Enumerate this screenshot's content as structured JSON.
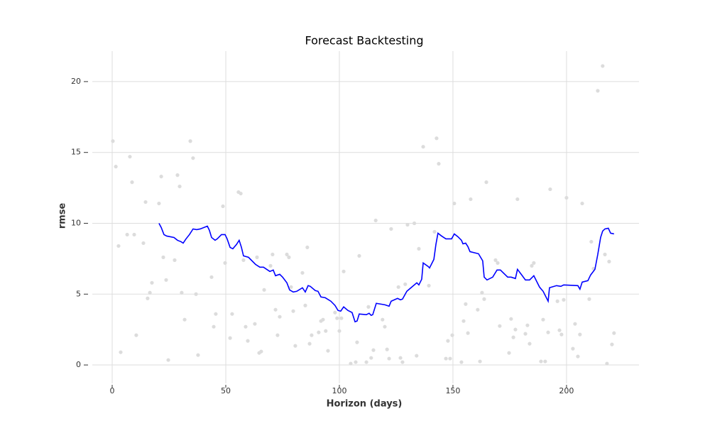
{
  "chart_data": {
    "type": "line",
    "title": "Forecast Backtesting",
    "x_label": "Horizon (days)",
    "y_label": "rmse",
    "xlim": [
      -8.75,
      231.9
    ],
    "ylim": [
      -1.3,
      22.15
    ],
    "xticks": [
      0,
      50,
      100,
      150,
      200
    ],
    "yticks": [
      0,
      5,
      10,
      15,
      20
    ],
    "grid": true,
    "series": [
      {
        "type": "scatter",
        "color": "#dcdcdc",
        "x": [
          0.3,
          1.6,
          2.8,
          3.75,
          6.6,
          7.8,
          8.75,
          9.7,
          10.6,
          13.75,
          14.7,
          15.6,
          16.6,
          17.5,
          20.6,
          21.6,
          22.5,
          23.75,
          24.7,
          27.5,
          28.75,
          29.7,
          30.6,
          31.9,
          34.4,
          35.6,
          36.9,
          37.8,
          43.75,
          44.7,
          45.6,
          48.75,
          49.7,
          51.9,
          52.8,
          55.6,
          56.6,
          57.8,
          58.75,
          59.7,
          62.8,
          63.75,
          64.7,
          65.6,
          66.9,
          69.7,
          70.6,
          71.9,
          72.8,
          73.75,
          76.9,
          77.8,
          78.75,
          79.7,
          80.6,
          83.75,
          85,
          85.9,
          86.9,
          87.8,
          90.9,
          91.9,
          92.8,
          94,
          95,
          98.1,
          99,
          100,
          100.9,
          101.9,
          105,
          107.2,
          107.8,
          108.75,
          111.9,
          112.8,
          114,
          115,
          116,
          119,
          120,
          121,
          121.9,
          122.8,
          126,
          126.9,
          127.8,
          129,
          130,
          133,
          134,
          135,
          136.9,
          139.4,
          141.9,
          142.8,
          143.75,
          146.9,
          147.8,
          148.75,
          149.7,
          150.6,
          153.75,
          154.7,
          155.6,
          156.6,
          157.8,
          160.9,
          161.9,
          162.8,
          163.75,
          164.7,
          168.75,
          169.7,
          170.6,
          174.7,
          175.6,
          176.6,
          177.5,
          178.4,
          181.9,
          182.8,
          183.75,
          184.7,
          185.6,
          188.75,
          189.7,
          190.6,
          191.9,
          192.8,
          196,
          196.9,
          197.8,
          198.75,
          200,
          202.8,
          203.75,
          205,
          205.9,
          206.9,
          210,
          210.9,
          211.9,
          213.75,
          215.9,
          216.9,
          217.8,
          218.75,
          220,
          220.9
        ],
        "values": [
          15.8,
          14.0,
          8.4,
          0.9,
          9.2,
          14.7,
          12.9,
          9.2,
          2.1,
          8.6,
          11.5,
          4.7,
          5.1,
          5.8,
          11.4,
          13.3,
          7.6,
          6.0,
          0.35,
          7.4,
          13.4,
          12.6,
          5.1,
          3.2,
          15.8,
          14.6,
          5.0,
          0.7,
          6.2,
          2.7,
          3.6,
          11.2,
          7.2,
          1.9,
          3.6,
          12.2,
          12.1,
          7.4,
          2.7,
          1.7,
          2.9,
          7.6,
          0.85,
          0.95,
          5.3,
          7.0,
          7.8,
          3.9,
          2.1,
          3.4,
          7.8,
          7.6,
          5.5,
          3.8,
          1.35,
          6.5,
          4.2,
          8.3,
          1.5,
          2.1,
          2.3,
          3.1,
          3.2,
          2.4,
          1.0,
          3.7,
          3.3,
          2.4,
          3.3,
          6.6,
          0.1,
          0.2,
          1.6,
          7.7,
          0.2,
          4.1,
          0.5,
          1.05,
          10.2,
          3.2,
          2.7,
          1.1,
          0.45,
          9.6,
          5.5,
          0.5,
          0.2,
          5.7,
          9.9,
          10.0,
          0.65,
          8.2,
          15.4,
          5.6,
          9.4,
          16.0,
          14.2,
          0.45,
          1.7,
          0.45,
          2.1,
          11.4,
          0.2,
          3.1,
          4.3,
          2.25,
          11.7,
          3.9,
          0.25,
          5.1,
          4.65,
          12.9,
          7.4,
          7.2,
          2.75,
          0.85,
          3.25,
          1.95,
          2.5,
          11.7,
          2.2,
          2.8,
          1.5,
          7.0,
          7.2,
          0.25,
          3.2,
          0.25,
          2.3,
          12.4,
          4.5,
          2.45,
          2.15,
          4.6,
          11.8,
          1.15,
          2.9,
          0.6,
          2.15,
          11.4,
          4.65,
          8.7,
          6.8,
          19.35,
          21.1,
          7.8,
          0.1,
          7.3,
          1.45,
          2.25
        ]
      },
      {
        "type": "line",
        "color": "#0000ff",
        "x": [
          20.6,
          21.6,
          22.8,
          24,
          27.2,
          28.75,
          30.3,
          31.25,
          32.5,
          34,
          35.6,
          37.2,
          38.75,
          41.9,
          42.8,
          43.75,
          45.3,
          46.25,
          48.1,
          49.7,
          50.6,
          51.9,
          53.1,
          54.7,
          55.9,
          56.9,
          57.8,
          60,
          63.1,
          65,
          66.6,
          69.4,
          70.9,
          71.9,
          73.75,
          75,
          76.9,
          78.1,
          79.7,
          81.25,
          83.75,
          85,
          86.25,
          87.2,
          89.4,
          90.6,
          91.9,
          93.75,
          96.25,
          98.1,
          99.4,
          100.6,
          101.9,
          103.75,
          105.6,
          106.9,
          107.8,
          108.75,
          111.9,
          113.1,
          114,
          114.7,
          116.25,
          120,
          121.9,
          122.8,
          125.6,
          126.9,
          127.8,
          129.7,
          131.9,
          134.1,
          135,
          136.25,
          136.9,
          139.1,
          139.7,
          141.6,
          142.5,
          143.4,
          145,
          146.9,
          149.4,
          150.6,
          152.2,
          153.75,
          154.4,
          155.6,
          156.6,
          157.5,
          161.25,
          163.1,
          163.75,
          165,
          167.5,
          169.4,
          170.9,
          174.1,
          175.6,
          177.5,
          178.4,
          180.3,
          181.9,
          183.75,
          185.6,
          188.1,
          189.7,
          191.9,
          192.5,
          195.6,
          197.5,
          198.75,
          205,
          205.9,
          206.9,
          209.4,
          210.6,
          212.5,
          213.75,
          215,
          215.9,
          216.9,
          218.4,
          219.4,
          220.9
        ],
        "values": [
          10.0,
          9.7,
          9.2,
          9.1,
          9.0,
          8.8,
          8.7,
          8.6,
          8.9,
          9.2,
          9.6,
          9.55,
          9.6,
          9.8,
          9.5,
          9.0,
          8.8,
          8.9,
          9.2,
          9.2,
          8.9,
          8.3,
          8.2,
          8.5,
          8.8,
          8.3,
          7.7,
          7.6,
          7.1,
          6.9,
          6.9,
          6.6,
          6.7,
          6.3,
          6.4,
          6.2,
          5.8,
          5.3,
          5.15,
          5.2,
          5.45,
          5.15,
          5.6,
          5.55,
          5.25,
          5.2,
          4.8,
          4.75,
          4.5,
          4.2,
          3.85,
          3.8,
          4.1,
          3.85,
          3.7,
          3.05,
          3.1,
          3.6,
          3.55,
          3.65,
          3.5,
          3.55,
          4.35,
          4.25,
          4.15,
          4.5,
          4.7,
          4.6,
          4.65,
          5.2,
          5.5,
          5.8,
          5.65,
          6.05,
          7.2,
          6.95,
          6.85,
          7.45,
          8.5,
          9.3,
          9.1,
          8.9,
          8.9,
          9.25,
          9.05,
          8.8,
          8.55,
          8.6,
          8.35,
          8.0,
          7.85,
          7.35,
          6.2,
          6.0,
          6.2,
          6.7,
          6.7,
          6.2,
          6.2,
          6.1,
          6.75,
          6.35,
          6.0,
          6.0,
          6.3,
          5.5,
          5.2,
          4.5,
          5.45,
          5.6,
          5.55,
          5.65,
          5.6,
          5.35,
          5.85,
          5.95,
          6.35,
          6.75,
          7.8,
          9.0,
          9.45,
          9.6,
          9.65,
          9.3,
          9.25
        ]
      }
    ]
  }
}
